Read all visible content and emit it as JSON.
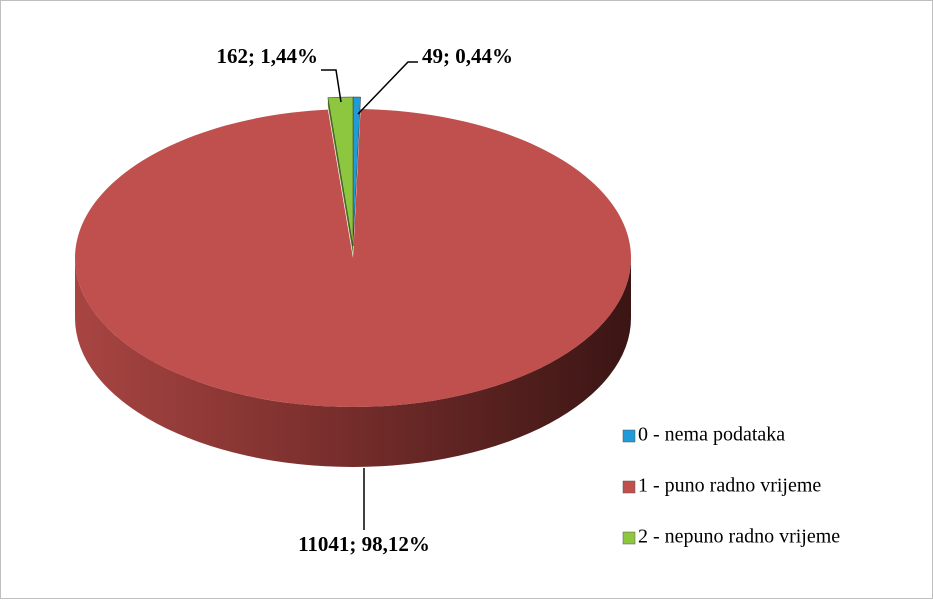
{
  "chart_data": {
    "type": "pie",
    "categories": [
      "0 - nema podataka",
      "1 - puno radno vrijeme",
      "2 - nepuno radno vrijeme"
    ],
    "values": [
      49,
      11041,
      162
    ],
    "value_labels": [
      "49; 0,44%",
      "11041; 98,12%",
      "162; 1,44%"
    ],
    "colors": [
      "#1f9bd7",
      "#c0504d",
      "#8dc63f"
    ],
    "legend": "right"
  }
}
